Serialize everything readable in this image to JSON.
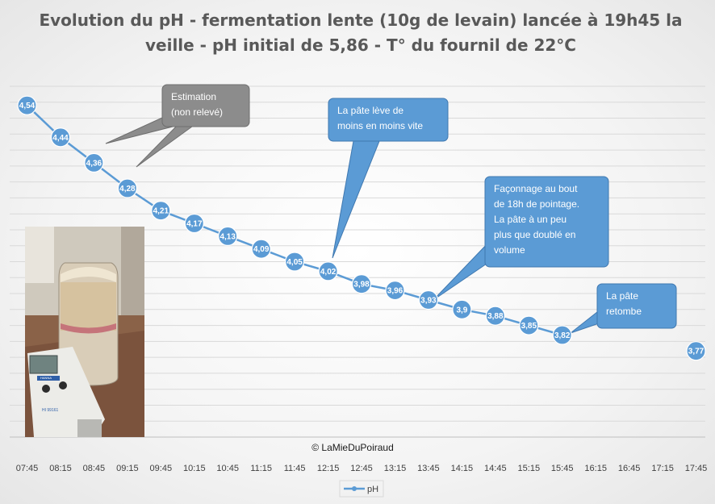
{
  "chart_data": {
    "type": "line",
    "title_lines": [
      "Evolution du pH - fermentation lente (10g de levain) lancée à 19h45 la",
      "veille - pH initial de 5,86 - T° du fournil de 22°C"
    ],
    "categories": [
      "07:45",
      "08:15",
      "08:45",
      "09:15",
      "09:45",
      "10:15",
      "10:45",
      "11:15",
      "11:45",
      "12:15",
      "12:45",
      "13:15",
      "13:45",
      "14:15",
      "14:45",
      "15:15",
      "15:45",
      "16:15",
      "16:45",
      "17:15",
      "17:45"
    ],
    "series": [
      {
        "name": "pH",
        "color": "#5b9bd5",
        "values": [
          4.54,
          4.44,
          4.36,
          4.28,
          4.21,
          4.17,
          4.13,
          4.09,
          4.05,
          4.02,
          3.98,
          3.96,
          3.93,
          3.9,
          3.88,
          3.85,
          3.82,
          null,
          null,
          null,
          3.77
        ],
        "labels": [
          "4,54",
          "4,44",
          "4,36",
          "4,28",
          "4,21",
          "4,17",
          "4,13",
          "4,09",
          "4,05",
          "4,02",
          "3,98",
          "3,96",
          "3,93",
          "3,9",
          "3,88",
          "3,85",
          "3,82",
          null,
          null,
          null,
          "3,77"
        ]
      }
    ],
    "ylim": [
      3.5,
      4.6
    ],
    "grid": true,
    "legend_position": "bottom",
    "annotations": [
      {
        "lines": [
          "Estimation",
          "(non relevé)"
        ],
        "color": "#8c8c8c"
      },
      {
        "lines": [
          "La pâte lève de",
          "moins en moins vite"
        ],
        "color": "#5b9bd5"
      },
      {
        "lines": [
          "Façonnage au bout",
          "de 18h de pointage.",
          "La pâte à un peu",
          "plus que doublé en",
          "volume"
        ],
        "color": "#5b9bd5"
      },
      {
        "lines": [
          "La pâte",
          "retombe"
        ],
        "color": "#5b9bd5"
      }
    ]
  },
  "copyright": "© LaMieDuPoiraud",
  "photo": {
    "meter_brand": "HANNA",
    "meter_model": "HI 99161"
  }
}
